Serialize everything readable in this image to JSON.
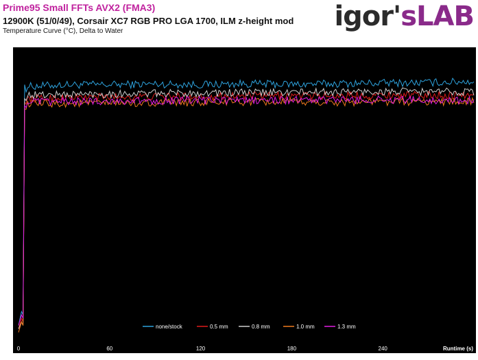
{
  "header": {
    "title": "Prime95 Small FFTs AVX2 (FMA3)",
    "subtitle": "12900K (51/0/49), Corsair XC7 RGB PRO LGA 1700, ILM z-height mod",
    "caption": "Temperature Curve (°C), Delta to Water",
    "logo_part1": "igor'",
    "logo_part2": "sLAB"
  },
  "chart_data": {
    "type": "line",
    "title": "",
    "xlabel": "Runtime (s)",
    "ylabel": "",
    "xlim": [
      0,
      300
    ],
    "ylim": [
      0,
      85
    ],
    "x_ticks": [
      0,
      60,
      120,
      180,
      240
    ],
    "y_ticks": [
      0,
      10,
      20,
      30,
      40,
      50,
      60,
      70,
      80
    ],
    "grid": false,
    "background": "#000000",
    "legend_position": "bottom-center",
    "series": [
      {
        "name": "none/stock",
        "color": "#2ea3de",
        "x": [
          0,
          2,
          3,
          4,
          5,
          6,
          30,
          60,
          90,
          120,
          150,
          180,
          210,
          240,
          270,
          300
        ],
        "y": [
          5,
          9,
          8,
          74,
          73,
          73.5,
          74,
          74,
          74.2,
          74,
          74.3,
          74.1,
          74.3,
          74.5,
          74.6,
          75
        ]
      },
      {
        "name": "0.5 mm",
        "color": "#e01b1b",
        "x": [
          0,
          2,
          3,
          4,
          5,
          6,
          30,
          60,
          90,
          120,
          150,
          180,
          210,
          240,
          270,
          300
        ],
        "y": [
          4,
          7,
          6,
          69,
          69.5,
          70,
          70.3,
          70.5,
          70.6,
          70.7,
          70.8,
          70.8,
          70.9,
          71,
          71,
          71
        ]
      },
      {
        "name": "0.8 mm",
        "color": "#cfcfcf",
        "x": [
          0,
          2,
          3,
          4,
          5,
          6,
          30,
          60,
          90,
          120,
          150,
          180,
          210,
          240,
          270,
          300
        ],
        "y": [
          4,
          6,
          5,
          70,
          70.5,
          71,
          71.2,
          71.4,
          71.5,
          71.6,
          71.7,
          71.8,
          71.9,
          72,
          72,
          72
        ]
      },
      {
        "name": "1.0 mm",
        "color": "#f07a1e",
        "x": [
          0,
          2,
          3,
          4,
          5,
          6,
          30,
          60,
          90,
          120,
          150,
          180,
          210,
          240,
          270,
          300
        ],
        "y": [
          3,
          6,
          5,
          67,
          68,
          68.5,
          68.6,
          68.7,
          68.8,
          68.9,
          69,
          69,
          69,
          69.1,
          69.1,
          69.2
        ]
      },
      {
        "name": "1.3 mm",
        "color": "#e21ee2",
        "x": [
          0,
          2,
          3,
          4,
          5,
          6,
          30,
          60,
          90,
          120,
          150,
          180,
          210,
          240,
          270,
          300
        ],
        "y": [
          5,
          8,
          7,
          68,
          68.5,
          69,
          69.2,
          69.3,
          69.4,
          69.5,
          69.5,
          69.6,
          69.6,
          69.7,
          69.6,
          69.5
        ]
      }
    ]
  }
}
